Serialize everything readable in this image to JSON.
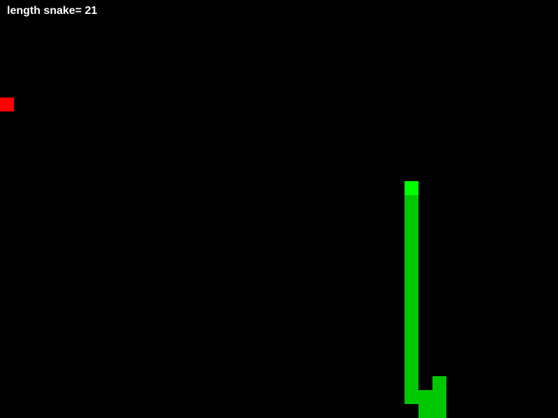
{
  "hud": {
    "score_text": "length snake= 21"
  },
  "grid": {
    "columns": 40,
    "rows": 30
  },
  "colors": {
    "background": "#000000",
    "score_text": "#ffffff",
    "snake_body": "#00c800",
    "snake_head": "#00ff00",
    "food": "#ff0000"
  },
  "food": {
    "col": 0,
    "row": 7
  },
  "snake": {
    "length": 21,
    "segments": [
      {
        "col": 29,
        "row": 13,
        "head": true
      },
      {
        "col": 29,
        "row": 14
      },
      {
        "col": 29,
        "row": 15
      },
      {
        "col": 29,
        "row": 16
      },
      {
        "col": 29,
        "row": 17
      },
      {
        "col": 29,
        "row": 18
      },
      {
        "col": 29,
        "row": 19
      },
      {
        "col": 29,
        "row": 20
      },
      {
        "col": 29,
        "row": 21
      },
      {
        "col": 29,
        "row": 22
      },
      {
        "col": 29,
        "row": 23
      },
      {
        "col": 29,
        "row": 24
      },
      {
        "col": 29,
        "row": 25
      },
      {
        "col": 29,
        "row": 26
      },
      {
        "col": 29,
        "row": 27
      },
      {
        "col": 29,
        "row": 28
      },
      {
        "col": 30,
        "row": 28
      },
      {
        "col": 30,
        "row": 29
      },
      {
        "col": 31,
        "row": 29
      },
      {
        "col": 31,
        "row": 28
      },
      {
        "col": 31,
        "row": 27
      }
    ]
  }
}
